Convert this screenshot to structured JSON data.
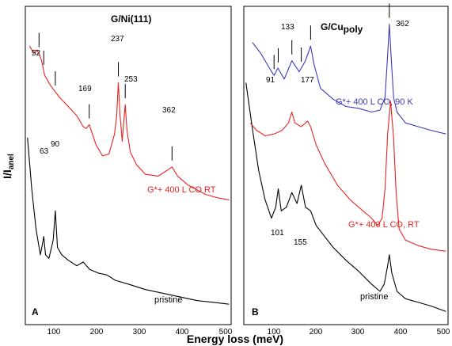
{
  "x_axis_label": "Energy loss (meV)",
  "y_axis_label_main": "I/I",
  "y_axis_label_sub": "anel",
  "colors": {
    "black": "#000000",
    "red": "#e8231f",
    "blue": "#3a3ab8"
  },
  "chart_data": [
    {
      "type": "line",
      "panel_label": "A",
      "title": "G/Ni(111)",
      "xlim": [
        20,
        500
      ],
      "x_ticks": [
        "100",
        "200",
        "300",
        "400",
        "500"
      ],
      "series": [
        {
          "name": "pristine",
          "color": "#000000",
          "x": [
            25,
            35,
            45,
            55,
            60,
            63,
            67,
            75,
            85,
            90,
            95,
            105,
            120,
            140,
            155,
            170,
            190,
            210,
            230,
            260,
            300,
            340,
            380,
            420,
            460,
            495
          ],
          "y": [
            1.0,
            0.72,
            0.5,
            0.36,
            0.42,
            0.46,
            0.36,
            0.34,
            0.44,
            0.6,
            0.4,
            0.36,
            0.33,
            0.3,
            0.32,
            0.28,
            0.26,
            0.25,
            0.22,
            0.2,
            0.17,
            0.15,
            0.13,
            0.11,
            0.1,
            0.09
          ]
        },
        {
          "name": "G*+ 400  L CO RT",
          "color": "#e8231f",
          "x": [
            30,
            40,
            46,
            52,
            58,
            65,
            80,
            100,
            120,
            140,
            155,
            162,
            169,
            175,
            185,
            200,
            215,
            228,
            233,
            237,
            241,
            246,
            250,
            253,
            257,
            265,
            280,
            300,
            330,
            350,
            362,
            375,
            400,
            440,
            470,
            495
          ],
          "y": [
            1.5,
            1.46,
            1.48,
            1.46,
            1.42,
            1.34,
            1.28,
            1.22,
            1.17,
            1.12,
            1.06,
            1.05,
            1.07,
            1.03,
            0.96,
            0.9,
            0.91,
            1.02,
            1.12,
            1.3,
            1.12,
            0.98,
            1.1,
            1.18,
            1.04,
            0.92,
            0.85,
            0.8,
            0.79,
            0.82,
            0.84,
            0.79,
            0.74,
            0.69,
            0.67,
            0.66
          ]
        }
      ],
      "peak_labels": [
        {
          "text": "52",
          "x": 52
        },
        {
          "text": "63",
          "x": 63
        },
        {
          "text": "90",
          "x": 90
        },
        {
          "text": "169",
          "x": 169
        },
        {
          "text": "237",
          "x": 237
        },
        {
          "text": "253",
          "x": 253
        },
        {
          "text": "362",
          "x": 362
        }
      ]
    },
    {
      "type": "line",
      "panel_label": "B",
      "title": "G/Cu",
      "title_sub": "poly",
      "xlim": [
        20,
        500
      ],
      "x_ticks": [
        "100",
        "200",
        "300",
        "400",
        "500"
      ],
      "series": [
        {
          "name": "pristine",
          "color": "#000000",
          "x": [
            25,
            40,
            55,
            70,
            85,
            95,
            101,
            108,
            120,
            133,
            145,
            155,
            165,
            177,
            190,
            210,
            230,
            260,
            290,
            320,
            340,
            350,
            358,
            362,
            368,
            380,
            400,
            430,
            460,
            495
          ],
          "y": [
            1.3,
            1.05,
            0.82,
            0.66,
            0.56,
            0.62,
            0.72,
            0.6,
            0.62,
            0.7,
            0.64,
            0.74,
            0.62,
            0.6,
            0.52,
            0.46,
            0.4,
            0.33,
            0.27,
            0.2,
            0.16,
            0.2,
            0.3,
            0.36,
            0.26,
            0.16,
            0.12,
            0.1,
            0.08,
            0.05
          ]
        },
        {
          "name": "G*+ 400 L CO, RT",
          "color": "#e8231f",
          "x": [
            35,
            50,
            70,
            91,
            110,
            125,
            133,
            140,
            155,
            170,
            177,
            190,
            210,
            240,
            270,
            300,
            320,
            335,
            345,
            352,
            358,
            365,
            372,
            378,
            385,
            400,
            430,
            460,
            495
          ],
          "y": [
            1.08,
            1.04,
            1.01,
            1.02,
            1.04,
            1.08,
            1.14,
            1.08,
            1.06,
            1.09,
            1.06,
            0.96,
            0.86,
            0.74,
            0.66,
            0.6,
            0.56,
            0.52,
            0.56,
            0.72,
            1.02,
            1.2,
            1.0,
            0.7,
            0.5,
            0.44,
            0.41,
            0.39,
            0.38
          ]
        },
        {
          "name": "G*+ 400 L CO, 90 K",
          "color": "#3a3ab8",
          "x": [
            40,
            60,
            80,
            91,
            100,
            115,
            133,
            150,
            165,
            177,
            185,
            200,
            230,
            260,
            290,
            320,
            340,
            352,
            358,
            362,
            366,
            372,
            380,
            400,
            430,
            460,
            495
          ],
          "y": [
            1.52,
            1.46,
            1.38,
            1.34,
            1.38,
            1.32,
            1.42,
            1.36,
            1.42,
            1.5,
            1.4,
            1.27,
            1.21,
            1.17,
            1.16,
            1.14,
            1.15,
            1.22,
            1.45,
            1.62,
            1.45,
            1.22,
            1.14,
            1.08,
            1.06,
            1.04,
            1.02
          ]
        }
      ],
      "peak_labels": [
        {
          "text": "91",
          "x": 91
        },
        {
          "text": "101",
          "x": 101
        },
        {
          "text": "133",
          "x": 133
        },
        {
          "text": "155",
          "x": 155
        },
        {
          "text": "177",
          "x": 177
        },
        {
          "text": "362",
          "x": 362
        }
      ]
    }
  ]
}
